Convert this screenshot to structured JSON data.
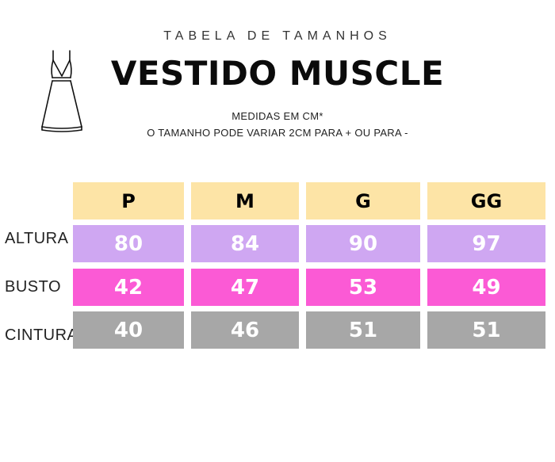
{
  "header": {
    "subtitle": "TABELA DE TAMANHOS",
    "title": "VESTIDO MUSCLE",
    "note_line1": "MEDIDAS EM CM*",
    "note_line2": "O TAMANHO PODE VARIAR 2CM PARA + OU PARA -"
  },
  "icon": "dress-icon",
  "table": {
    "sizes": [
      "P",
      "M",
      "G",
      "GG"
    ],
    "rows": [
      {
        "label": "ALTURA",
        "values": [
          "80",
          "84",
          "90",
          "97"
        ],
        "color": "#cfa7f2"
      },
      {
        "label": "BUSTO",
        "values": [
          "42",
          "47",
          "53",
          "49"
        ],
        "color": "#fb5ad5"
      },
      {
        "label": "CINTURA",
        "values": [
          "40",
          "46",
          "51",
          "51"
        ],
        "color": "#a7a7a7"
      }
    ],
    "header_color": "#fde4a6"
  }
}
